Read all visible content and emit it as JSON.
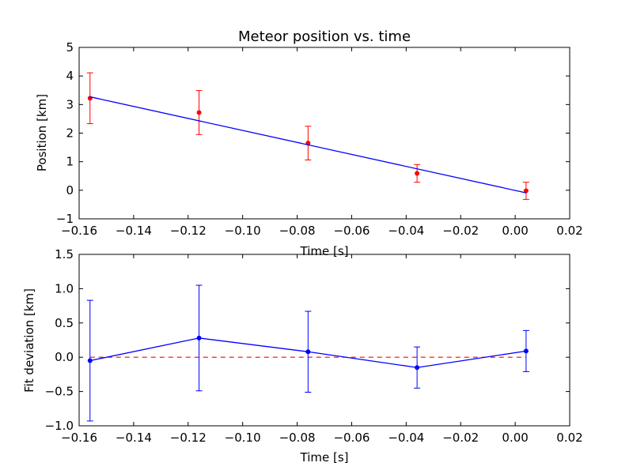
{
  "chart_data": [
    {
      "type": "scatter",
      "title": "Meteor position vs. time",
      "xlabel": "Time [s]",
      "ylabel": "Position [km]",
      "xlim": [
        -0.16,
        0.02
      ],
      "ylim": [
        -1,
        5
      ],
      "xticks": [
        -0.16,
        -0.14,
        -0.12,
        -0.1,
        -0.08,
        -0.06,
        -0.04,
        -0.02,
        0.0,
        0.02
      ],
      "xtick_labels": [
        "−0.16",
        "−0.14",
        "−0.12",
        "−0.10",
        "−0.08",
        "−0.06",
        "−0.04",
        "−0.02",
        "0.00",
        "0.02"
      ],
      "yticks": [
        -1,
        0,
        1,
        2,
        3,
        4,
        5
      ],
      "ytick_labels": [
        "−1",
        "0",
        "1",
        "2",
        "3",
        "4",
        "5"
      ],
      "grid": false,
      "series": [
        {
          "kind": "errorbar-points",
          "color": "#ff0000",
          "x": [
            -0.156,
            -0.116,
            -0.076,
            -0.036,
            0.004
          ],
          "y": [
            3.22,
            2.72,
            1.65,
            0.59,
            -0.02
          ],
          "yerr": [
            0.89,
            0.77,
            0.59,
            0.31,
            0.3
          ]
        },
        {
          "kind": "fit-line",
          "color": "#0000ff",
          "x": [
            -0.156,
            0.004
          ],
          "y": [
            3.27,
            -0.09
          ]
        }
      ]
    },
    {
      "type": "line",
      "title": "",
      "xlabel": "Time [s]",
      "ylabel": "Fit deviation [km]",
      "xlim": [
        -0.16,
        0.02
      ],
      "ylim": [
        -1.0,
        1.5
      ],
      "xticks": [
        -0.16,
        -0.14,
        -0.12,
        -0.1,
        -0.08,
        -0.06,
        -0.04,
        -0.02,
        0.0,
        0.02
      ],
      "xtick_labels": [
        "−0.16",
        "−0.14",
        "−0.12",
        "−0.10",
        "−0.08",
        "−0.06",
        "−0.04",
        "−0.02",
        "0.00",
        "0.02"
      ],
      "yticks": [
        -1.0,
        -0.5,
        0.0,
        0.5,
        1.0,
        1.5
      ],
      "ytick_labels": [
        "−1.0",
        "−0.5",
        "0.0",
        "0.5",
        "1.0",
        "1.5"
      ],
      "grid": false,
      "reference_line": {
        "y": 0,
        "x": [
          -0.156,
          0.004
        ],
        "color": "#ff0000",
        "style": "dashed"
      },
      "series": [
        {
          "kind": "errorbar-line",
          "color": "#0000ff",
          "x": [
            -0.156,
            -0.116,
            -0.076,
            -0.036,
            0.004
          ],
          "y": [
            -0.05,
            0.28,
            0.08,
            -0.15,
            0.09
          ],
          "yerr": [
            0.88,
            0.77,
            0.59,
            0.3,
            0.3
          ]
        }
      ]
    }
  ]
}
